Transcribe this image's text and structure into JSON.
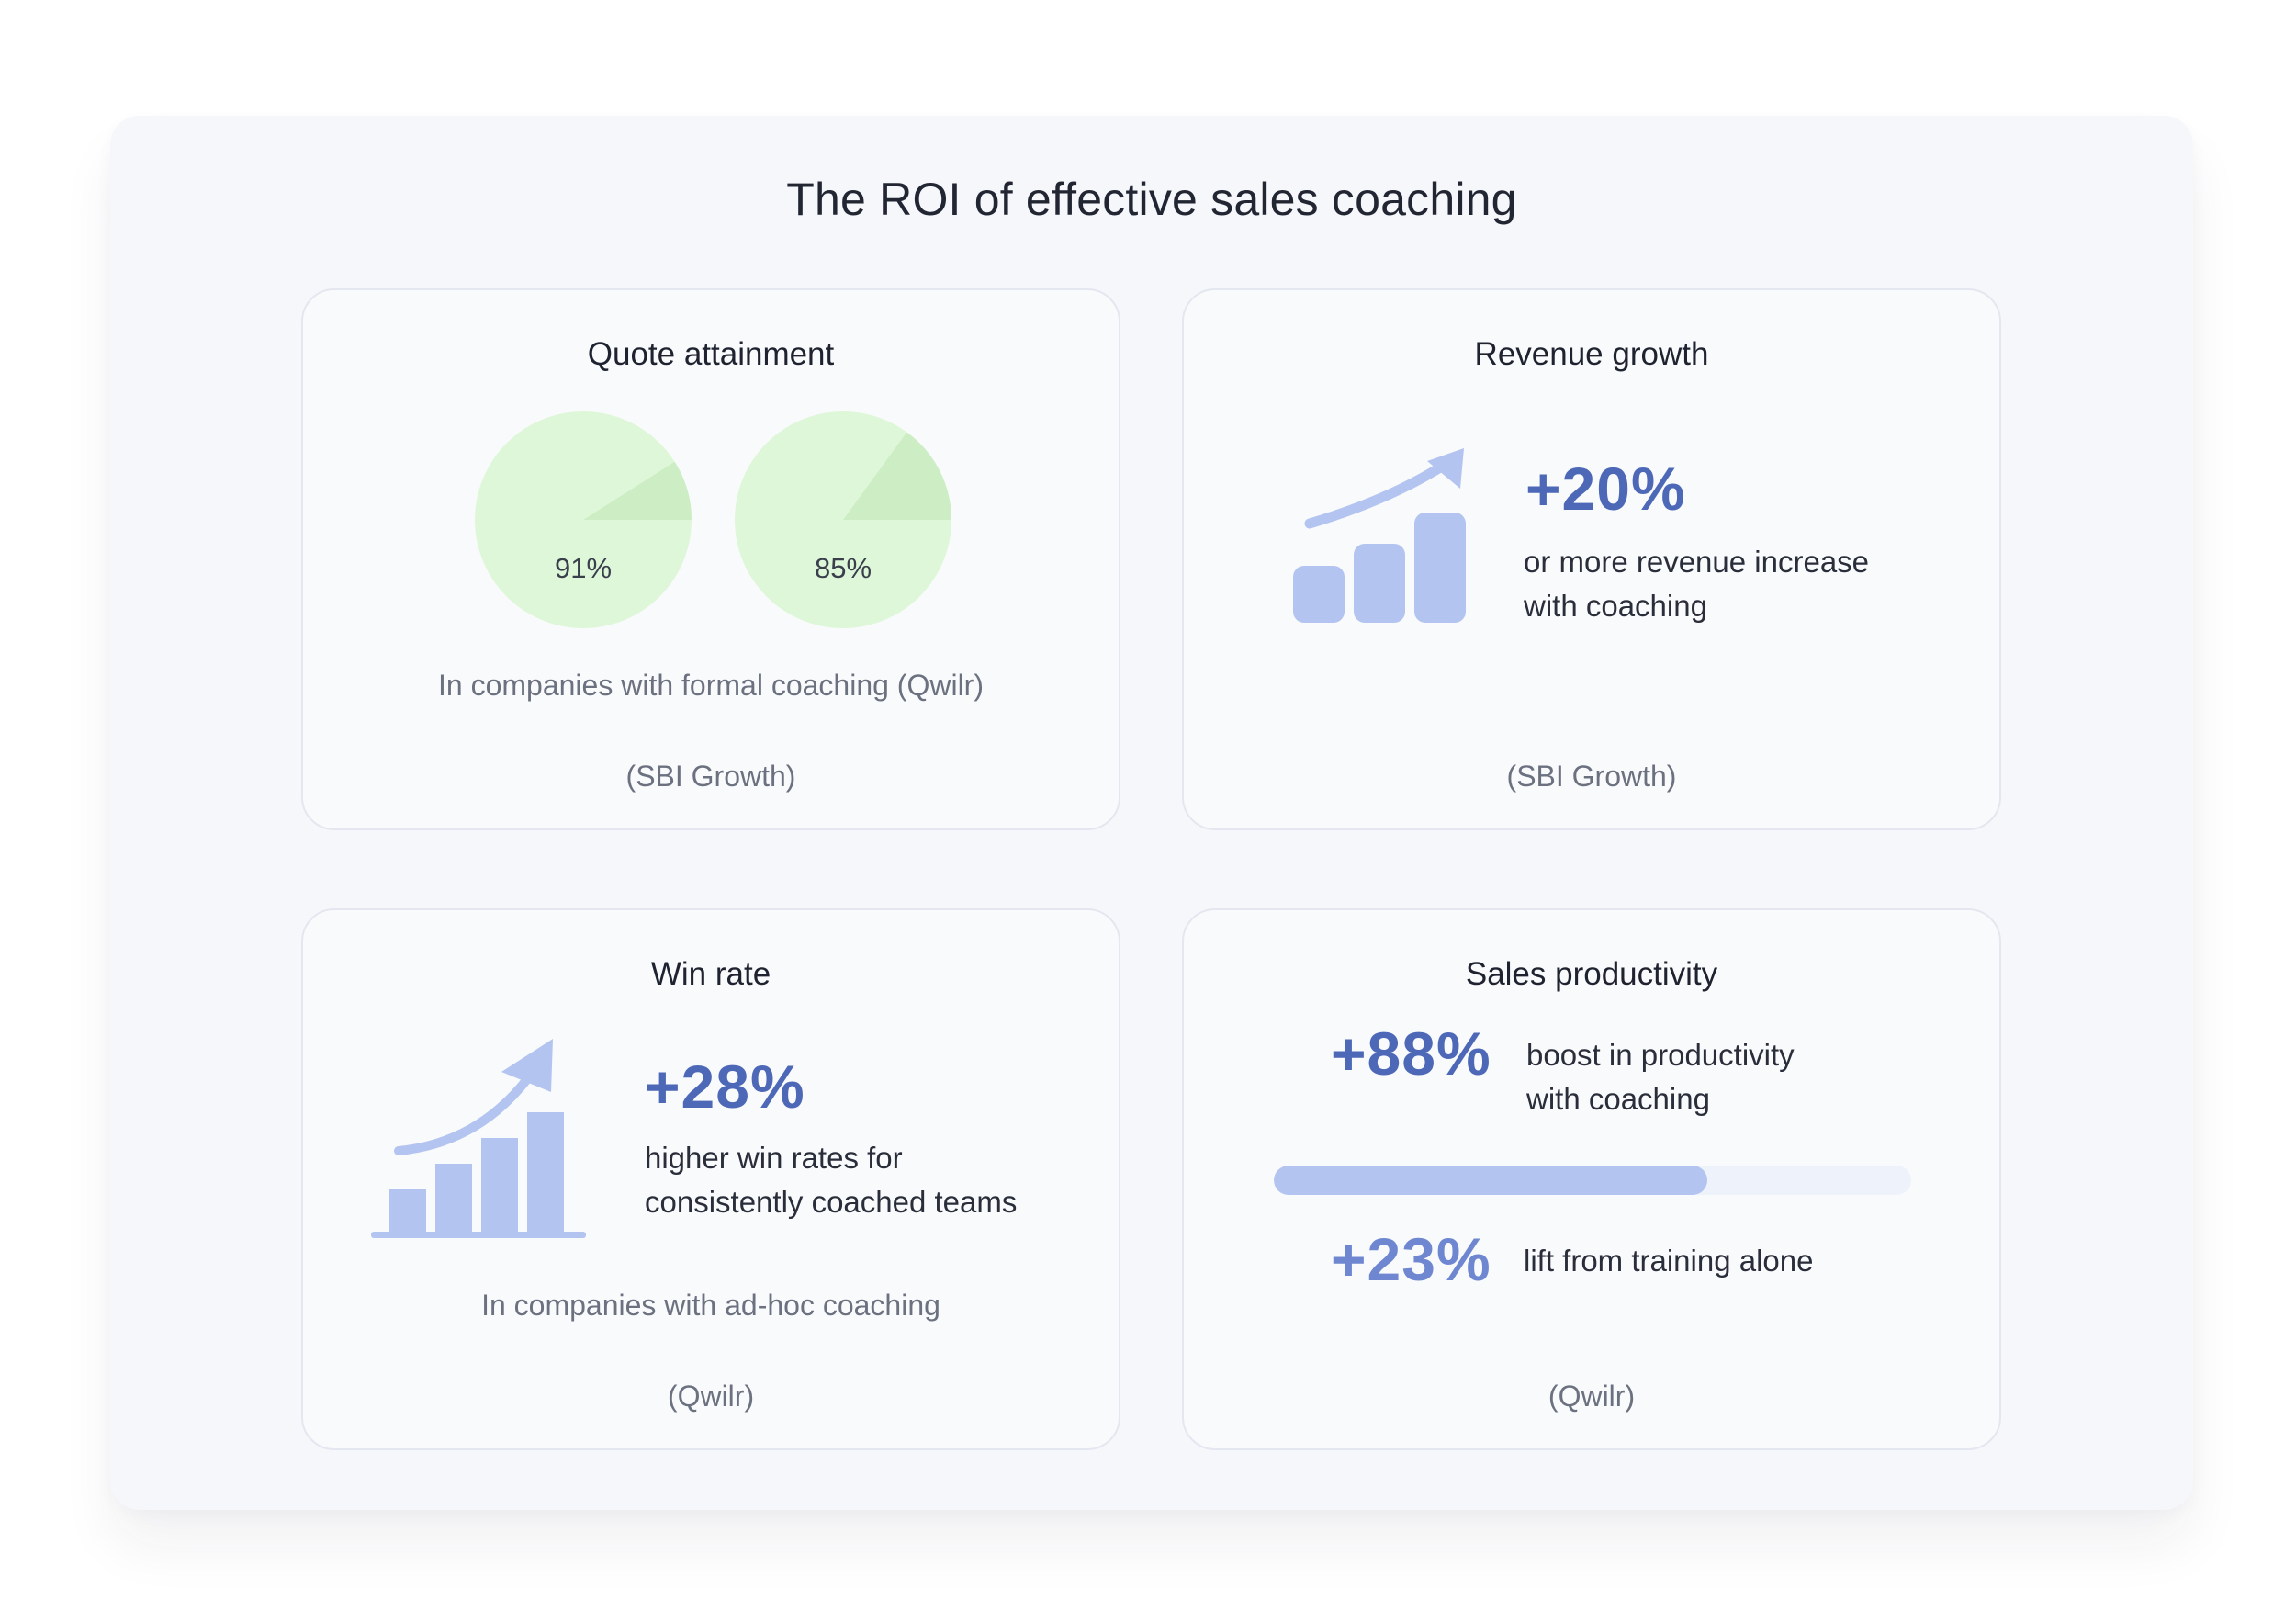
{
  "title": "The ROI of effective sales coaching",
  "colors": {
    "accent_strong": "#4d68b7",
    "accent_soft": "#6f87d0",
    "icon_fill": "#b3c4f0",
    "pie_fill": "#dff7d9",
    "pie_slice": "#cdeec5",
    "progress_track": "#eef2fb",
    "progress_fill": "#b3c4f0"
  },
  "cards": {
    "quote": {
      "title": "Quote attainment",
      "pies": [
        {
          "label": "91%",
          "value": 91
        },
        {
          "label": "85%",
          "value": 85
        }
      ],
      "note": "In companies with formal coaching (Qwilr)",
      "source": "(SBI Growth)"
    },
    "revenue": {
      "title": "Revenue growth",
      "icon": "bar-chart-growth-icon",
      "stat": "+20%",
      "desc_line1": "or more revenue increase",
      "desc_line2": "with coaching",
      "source": "(SBI Growth)"
    },
    "win": {
      "title": "Win rate",
      "icon": "bar-chart-growth-icon",
      "stat": "+28%",
      "desc_line1": "higher win rates for",
      "desc_line2": "consistently coached teams",
      "note": "In companies with ad-hoc coaching",
      "source": "(Qwilr)"
    },
    "productivity": {
      "title": "Sales productivity",
      "stat1": "+88%",
      "desc1_line1": "boost in productivity",
      "desc1_line2": "with coaching",
      "progress": 0.68,
      "stat2": "+23%",
      "desc2": "lift from training alone",
      "source": "(Qwilr)"
    }
  }
}
